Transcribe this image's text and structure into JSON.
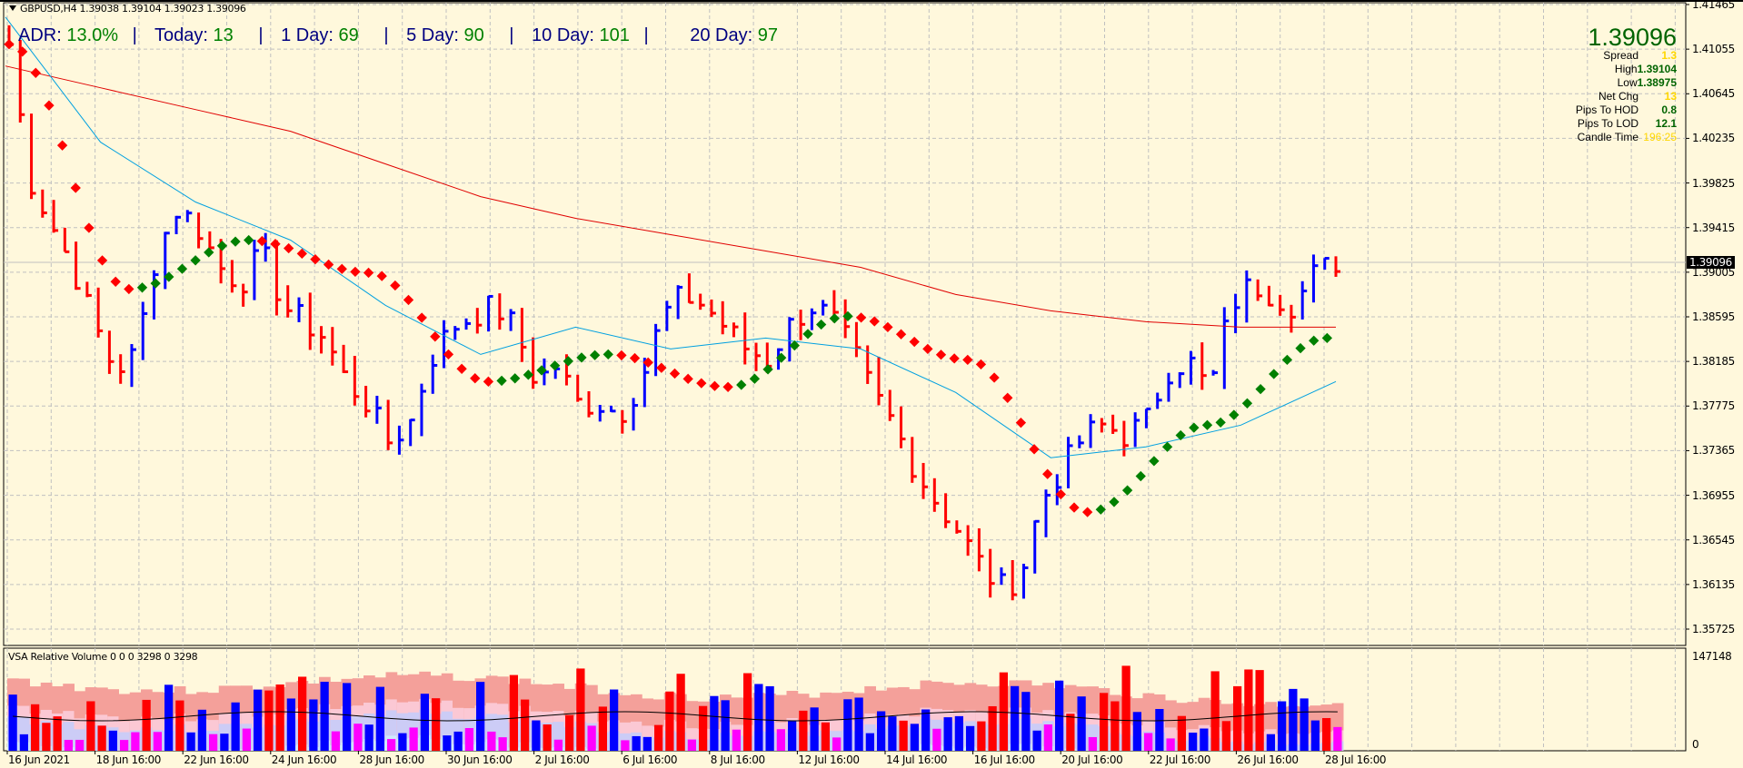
{
  "header": {
    "symbol_line": "GBPUSD,H4  1.39038 1.39104 1.39023 1.39096"
  },
  "adr_panel": {
    "adr_label": "ADR:",
    "adr_value": "13.0%",
    "today_label": "Today:",
    "today_value": "13",
    "day1_label": "1 Day:",
    "day1_value": "69",
    "day5_label": "5 Day:",
    "day5_value": "90",
    "day10_label": "10 Day:",
    "day10_value": "101",
    "day20_label": "20 Day:",
    "day20_value": "97",
    "separator": "|"
  },
  "info_panel": {
    "price": "1.39096",
    "rows": [
      {
        "label": "Spread",
        "value": "1.3",
        "color": "#ffd700"
      },
      {
        "label": "High",
        "value": "1.39104",
        "color": "#006400"
      },
      {
        "label": "Low",
        "value": "1.38975",
        "color": "#006400"
      },
      {
        "label": "Net Chg",
        "value": "13",
        "color": "#ffd700"
      },
      {
        "label": "Pips To HOD",
        "value": "0.8",
        "color": "#006400"
      },
      {
        "label": "Pips To LOD",
        "value": "12.1",
        "color": "#006400"
      },
      {
        "label": "Candle Time",
        "value": "196:25",
        "color": "#ffd700"
      }
    ]
  },
  "price_axis": {
    "labels": [
      "1.41465",
      "1.41055",
      "1.40645",
      "1.40235",
      "1.39825",
      "1.39415",
      "1.39005",
      "1.38595",
      "1.38185",
      "1.37775",
      "1.37365",
      "1.36955",
      "1.36545",
      "1.36135",
      "1.35725"
    ],
    "current_price": "1.39096"
  },
  "volume_panel": {
    "title": "VSA Relative Volume 0 0 0 3298 0 3298",
    "axis_max": "147148",
    "axis_min": "0"
  },
  "time_axis": {
    "labels": [
      "16 Jun 2021",
      "18 Jun 16:00",
      "22 Jun 16:00",
      "24 Jun 16:00",
      "28 Jun 16:00",
      "30 Jun 16:00",
      "2 Jul 16:00",
      "6 Jul 16:00",
      "8 Jul 16:00",
      "12 Jul 16:00",
      "14 Jul 16:00",
      "16 Jul 16:00",
      "20 Jul 16:00",
      "22 Jul 16:00",
      "26 Jul 16:00",
      "28 Jul 16:00"
    ]
  },
  "colors": {
    "background": "#fff8dc",
    "grid": "#c0c0c0",
    "bull_bar": "#0000ff",
    "bear_bar": "#ff0000",
    "ma_slow": "#e00000",
    "ma_fast": "#00a0e0",
    "trend_down_dot": "#ff0000",
    "trend_up_dot": "#008000"
  },
  "chart_data": {
    "type": "ohlc",
    "title": "GBPUSD,H4",
    "xlabel": "",
    "ylabel": "",
    "ylim": [
      1.35725,
      1.41465
    ],
    "grid": true,
    "x": [
      "16 Jun 2021",
      "18 Jun 16:00",
      "22 Jun 16:00",
      "24 Jun 16:00",
      "28 Jun 16:00",
      "30 Jun 16:00",
      "2 Jul 16:00",
      "6 Jul 16:00",
      "8 Jul 16:00",
      "12 Jul 16:00",
      "14 Jul 16:00",
      "16 Jul 16:00",
      "20 Jul 16:00",
      "22 Jul 16:00",
      "26 Jul 16:00",
      "28 Jul 16:00"
    ],
    "bars_close_approx": [
      1.411,
      1.3985,
      1.3945,
      1.3905,
      1.3855,
      1.381,
      1.3825,
      1.392,
      1.396,
      1.394,
      1.3905,
      1.389,
      1.392,
      1.387,
      1.3855,
      1.384,
      1.38,
      1.378,
      1.3745,
      1.376,
      1.382,
      1.385,
      1.386,
      1.387,
      1.385,
      1.38,
      1.3815,
      1.378,
      1.378,
      1.377,
      1.38,
      1.386,
      1.388,
      1.387,
      1.385,
      1.383,
      1.382,
      1.385,
      1.387,
      1.386,
      1.383,
      1.379,
      1.376,
      1.372,
      1.369,
      1.3665,
      1.3635,
      1.361,
      1.362,
      1.369,
      1.372,
      1.375,
      1.376,
      1.375,
      1.3765,
      1.381,
      1.382,
      1.379,
      1.387,
      1.389,
      1.388,
      1.387,
      1.39,
      1.391
    ],
    "series": [
      {
        "name": "MA slow (red)",
        "values_approx": [
          1.409,
          1.407,
          1.405,
          1.403,
          1.4,
          1.397,
          1.395,
          1.3935,
          1.392,
          1.3905,
          1.388,
          1.3865,
          1.3855,
          1.385,
          1.385
        ]
      },
      {
        "name": "MA fast (blue)",
        "values_approx": [
          1.4135,
          1.402,
          1.3965,
          1.393,
          1.387,
          1.3825,
          1.385,
          1.383,
          1.384,
          1.383,
          1.379,
          1.373,
          1.374,
          1.376,
          1.38
        ]
      },
      {
        "name": "Trend dots",
        "values_approx": [
          1.411,
          1.3885,
          1.393,
          1.39,
          1.38,
          1.3825,
          1.3795,
          1.386,
          1.382,
          1.368,
          1.376,
          1.384
        ]
      }
    ],
    "volume": {
      "title": "VSA Relative Volume",
      "ylim": [
        0,
        147148
      ]
    }
  }
}
